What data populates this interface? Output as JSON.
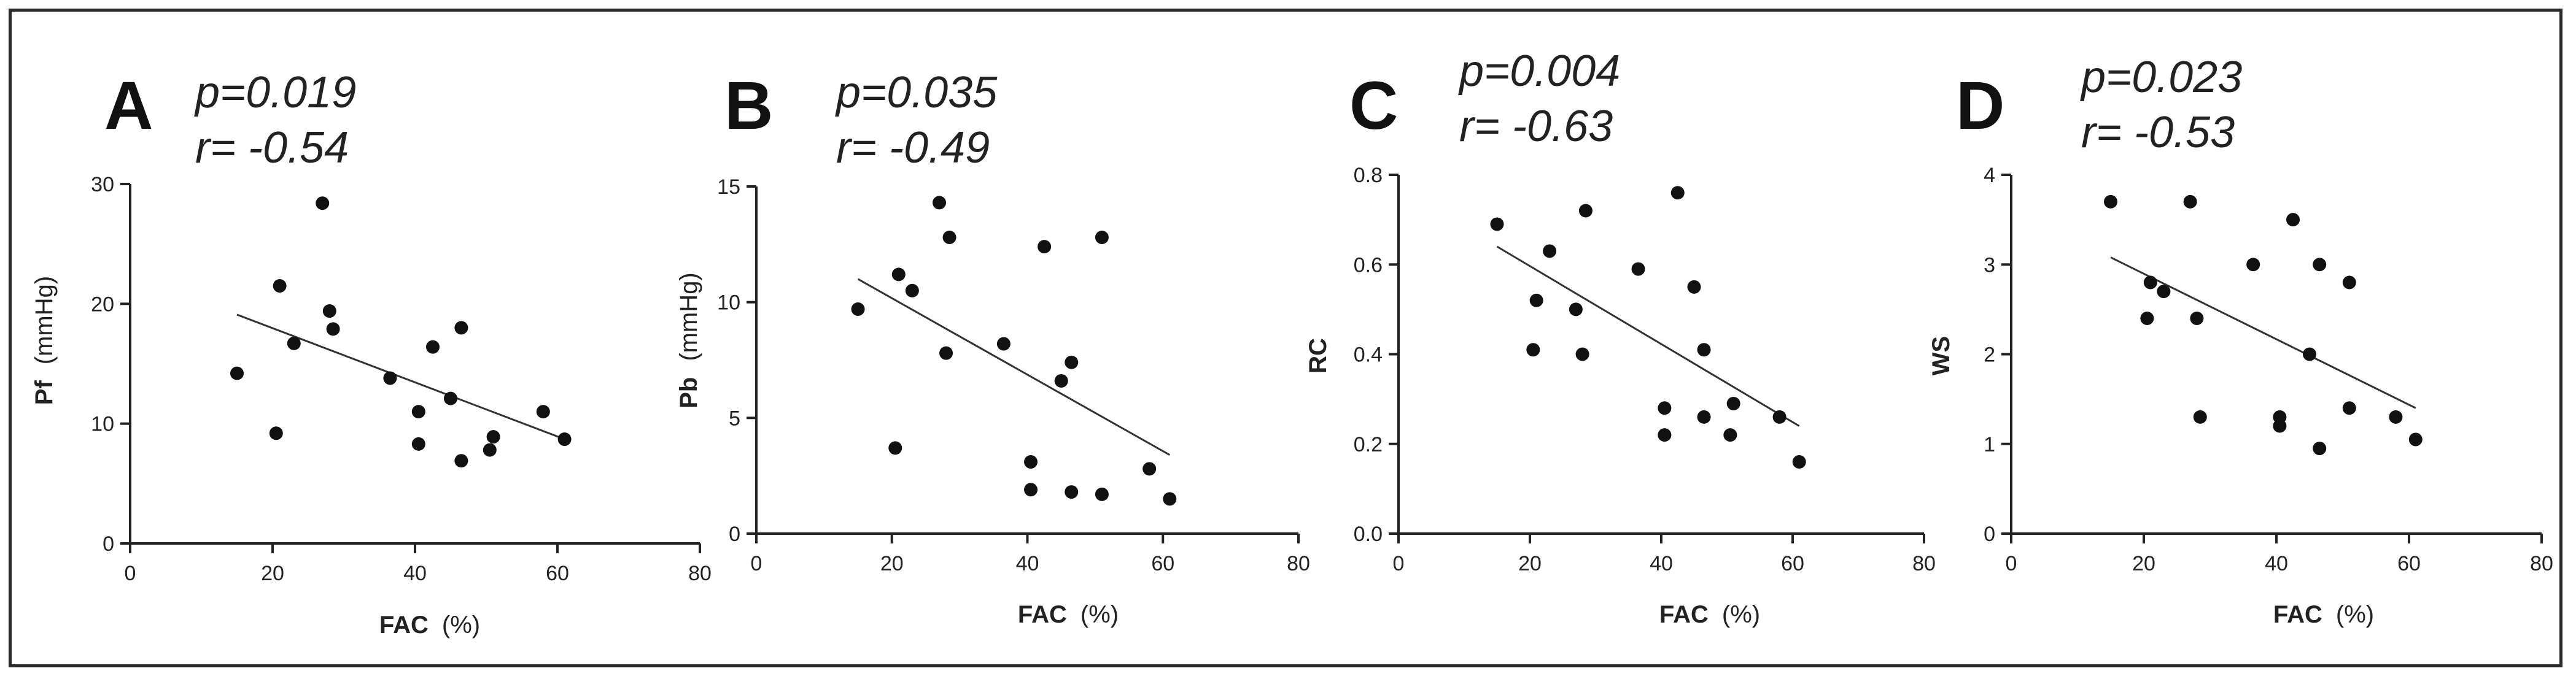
{
  "figure": {
    "border_color": "#2a2a2a",
    "point_color": "#111111",
    "line_color": "#333333"
  },
  "chart_data": [
    {
      "type": "scatter",
      "panel": "A",
      "title": "",
      "p_text": "p=0.019",
      "r_text": "r= -0.54",
      "xlabel": "FAC",
      "xunit": "(%)",
      "ylabel": "Pf",
      "yunit": "(mmHg)",
      "xlim": [
        0,
        80
      ],
      "ylim": [
        0,
        30
      ],
      "xticks": [
        "0",
        "20",
        "40",
        "60",
        "80"
      ],
      "yticks": [
        "0",
        "10",
        "20",
        "30"
      ],
      "points": [
        [
          15,
          14.2
        ],
        [
          20.5,
          9.2
        ],
        [
          21,
          21.5
        ],
        [
          23,
          16.7
        ],
        [
          27,
          28.4
        ],
        [
          28,
          19.4
        ],
        [
          28.5,
          17.9
        ],
        [
          36.5,
          13.8
        ],
        [
          40.5,
          11
        ],
        [
          40.5,
          8.3
        ],
        [
          42.5,
          16.4
        ],
        [
          45,
          12.1
        ],
        [
          46.5,
          18
        ],
        [
          46.5,
          6.9
        ],
        [
          50.5,
          7.8
        ],
        [
          51,
          8.9
        ],
        [
          58,
          11
        ],
        [
          61,
          8.7
        ]
      ],
      "fit": {
        "x": [
          15,
          61
        ],
        "y": [
          19.1,
          8.7
        ]
      }
    },
    {
      "type": "scatter",
      "panel": "B",
      "title": "",
      "p_text": "p=0.035",
      "r_text": "r= -0.49",
      "xlabel": "FAC",
      "xunit": "(%)",
      "ylabel": "Pb",
      "yunit": "(mmHg)",
      "xlim": [
        0,
        80
      ],
      "ylim": [
        0,
        15
      ],
      "xticks": [
        "0",
        "20",
        "40",
        "60",
        "80"
      ],
      "yticks": [
        "0",
        "5",
        "10",
        "15"
      ],
      "points": [
        [
          15,
          9.7
        ],
        [
          20.5,
          3.7
        ],
        [
          21,
          11.2
        ],
        [
          23,
          10.5
        ],
        [
          27,
          14.3
        ],
        [
          28,
          7.8
        ],
        [
          28.5,
          12.8
        ],
        [
          36.5,
          8.2
        ],
        [
          40.5,
          3.1
        ],
        [
          40.5,
          1.9
        ],
        [
          42.5,
          12.4
        ],
        [
          45,
          6.6
        ],
        [
          46.5,
          7.4
        ],
        [
          46.5,
          1.8
        ],
        [
          51,
          12.8
        ],
        [
          51,
          1.7
        ],
        [
          58,
          2.8
        ],
        [
          61,
          1.5
        ]
      ],
      "fit": {
        "x": [
          15,
          61
        ],
        "y": [
          11,
          3.4
        ]
      }
    },
    {
      "type": "scatter",
      "panel": "C",
      "title": "",
      "p_text": "p=0.004",
      "r_text": "r= -0.63",
      "xlabel": "FAC",
      "xunit": "(%)",
      "ylabel": "RC",
      "yunit": "",
      "xlim": [
        0,
        80
      ],
      "ylim": [
        0,
        0.8
      ],
      "xticks": [
        "0",
        "20",
        "40",
        "60",
        "80"
      ],
      "yticks": [
        "0.0",
        "0.2",
        "0.4",
        "0.6",
        "0.8"
      ],
      "points": [
        [
          15,
          0.69
        ],
        [
          20.5,
          0.41
        ],
        [
          21,
          0.52
        ],
        [
          23,
          0.63
        ],
        [
          27,
          0.5
        ],
        [
          28,
          0.4
        ],
        [
          28.5,
          0.72
        ],
        [
          36.5,
          0.59
        ],
        [
          40.5,
          0.28
        ],
        [
          40.5,
          0.22
        ],
        [
          42.5,
          0.76
        ],
        [
          45,
          0.55
        ],
        [
          46.5,
          0.41
        ],
        [
          46.5,
          0.26
        ],
        [
          50.5,
          0.22
        ],
        [
          51,
          0.29
        ],
        [
          58,
          0.26
        ],
        [
          61,
          0.16
        ]
      ],
      "fit": {
        "x": [
          15,
          61
        ],
        "y": [
          0.64,
          0.24
        ]
      }
    },
    {
      "type": "scatter",
      "panel": "D",
      "title": "",
      "p_text": "p=0.023",
      "r_text": "r= -0.53",
      "xlabel": "FAC",
      "xunit": "(%)",
      "ylabel": "WS",
      "yunit": "",
      "xlim": [
        0,
        80
      ],
      "ylim": [
        0,
        4
      ],
      "xticks": [
        "0",
        "20",
        "40",
        "60",
        "80"
      ],
      "yticks": [
        "0",
        "1",
        "2",
        "3",
        "4"
      ],
      "points": [
        [
          15,
          3.7
        ],
        [
          20.5,
          2.4
        ],
        [
          21,
          2.8
        ],
        [
          23,
          2.7
        ],
        [
          27,
          3.7
        ],
        [
          28,
          2.4
        ],
        [
          28.5,
          1.3
        ],
        [
          36.5,
          3
        ],
        [
          40.5,
          1.3
        ],
        [
          40.5,
          1.2
        ],
        [
          42.5,
          3.5
        ],
        [
          45,
          2
        ],
        [
          46.5,
          3
        ],
        [
          46.5,
          0.95
        ],
        [
          51,
          2.8
        ],
        [
          51,
          1.4
        ],
        [
          58,
          1.3
        ],
        [
          61,
          1.05
        ]
      ],
      "fit": {
        "x": [
          15,
          61
        ],
        "y": [
          3.08,
          1.4
        ]
      }
    }
  ]
}
